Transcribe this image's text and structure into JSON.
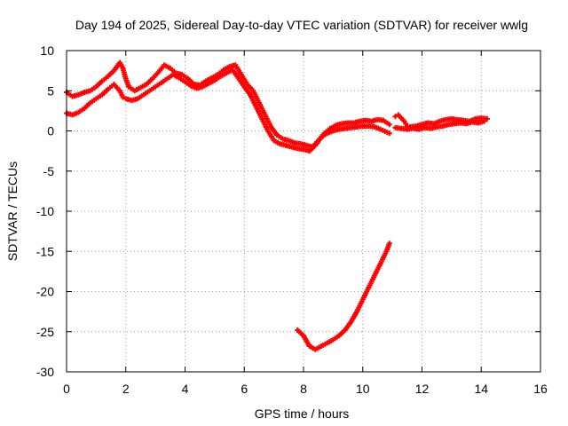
{
  "chart_data": {
    "type": "scatter",
    "title": "Day 194 of 2025, Sidereal Day-to-day VTEC variation (SDTVAR) for receiver wwlg",
    "xlabel": "GPS time / hours",
    "ylabel": "SDTVAR / TECUs",
    "xlim": [
      0,
      16
    ],
    "ylim": [
      -30,
      10
    ],
    "xticks": [
      "0",
      "2",
      "4",
      "6",
      "8",
      "10",
      "12",
      "14",
      "16"
    ],
    "yticks": [
      "10",
      "5",
      "0",
      "-5",
      "-10",
      "-15",
      "-20",
      "-25",
      "-30"
    ],
    "grid": true,
    "legend": "none",
    "marker": "plus",
    "color": "#ff0000",
    "series": [
      {
        "points": [
          [
            0.0,
            4.8
          ],
          [
            0.2,
            4.3
          ],
          [
            0.4,
            4.5
          ],
          [
            0.6,
            4.8
          ],
          [
            0.8,
            5.0
          ],
          [
            1.0,
            5.5
          ],
          [
            1.2,
            6.2
          ],
          [
            1.4,
            6.8
          ],
          [
            1.6,
            7.5
          ],
          [
            1.8,
            8.5
          ],
          [
            1.9,
            7.8
          ],
          [
            2.0,
            6.5
          ],
          [
            2.1,
            5.5
          ],
          [
            2.3,
            5.0
          ],
          [
            2.5,
            5.4
          ],
          [
            2.7,
            5.8
          ],
          [
            2.9,
            6.5
          ],
          [
            3.1,
            7.3
          ],
          [
            3.3,
            8.2
          ],
          [
            3.5,
            7.8
          ],
          [
            3.7,
            7.2
          ],
          [
            3.9,
            7.0
          ],
          [
            4.1,
            6.5
          ],
          [
            4.3,
            5.8
          ],
          [
            4.5,
            5.7
          ],
          [
            4.7,
            6.2
          ],
          [
            4.9,
            6.6
          ],
          [
            5.1,
            7.0
          ],
          [
            5.3,
            7.6
          ],
          [
            5.5,
            8.0
          ],
          [
            5.7,
            8.2
          ],
          [
            5.9,
            7.0
          ],
          [
            6.1,
            5.8
          ],
          [
            6.3,
            5.0
          ],
          [
            6.5,
            3.5
          ],
          [
            6.7,
            2.0
          ],
          [
            6.9,
            0.5
          ],
          [
            7.1,
            -0.5
          ],
          [
            7.3,
            -1.0
          ],
          [
            7.5,
            -1.2
          ],
          [
            7.7,
            -1.5
          ],
          [
            7.9,
            -1.6
          ],
          [
            8.1,
            -1.8
          ],
          [
            8.3,
            -2.0
          ],
          [
            8.5,
            -1.2
          ],
          [
            8.7,
            -0.3
          ],
          [
            8.9,
            0.3
          ],
          [
            9.1,
            0.7
          ],
          [
            9.3,
            0.9
          ],
          [
            9.5,
            1.0
          ],
          [
            9.7,
            1.0
          ],
          [
            9.9,
            1.2
          ],
          [
            10.1,
            1.3
          ],
          [
            10.3,
            1.2
          ],
          [
            10.5,
            1.4
          ],
          [
            10.7,
            1.3
          ],
          [
            10.9,
            0.8
          ]
        ]
      },
      {
        "points": [
          [
            0.0,
            2.2
          ],
          [
            0.2,
            2.0
          ],
          [
            0.4,
            2.3
          ],
          [
            0.6,
            2.8
          ],
          [
            0.8,
            3.5
          ],
          [
            1.0,
            4.0
          ],
          [
            1.2,
            4.5
          ],
          [
            1.4,
            5.2
          ],
          [
            1.6,
            5.8
          ],
          [
            1.8,
            5.0
          ],
          [
            1.9,
            4.2
          ],
          [
            2.0,
            4.0
          ],
          [
            2.2,
            3.8
          ],
          [
            2.4,
            4.0
          ],
          [
            2.6,
            4.5
          ],
          [
            2.8,
            5.0
          ],
          [
            3.0,
            5.5
          ],
          [
            3.2,
            6.0
          ],
          [
            3.4,
            6.5
          ],
          [
            3.6,
            7.0
          ],
          [
            3.8,
            6.6
          ],
          [
            4.0,
            6.1
          ],
          [
            4.2,
            5.6
          ],
          [
            4.4,
            5.3
          ],
          [
            4.6,
            5.5
          ],
          [
            4.8,
            5.9
          ],
          [
            5.0,
            6.3
          ],
          [
            5.2,
            6.8
          ],
          [
            5.4,
            7.2
          ],
          [
            5.6,
            7.6
          ],
          [
            5.8,
            6.6
          ],
          [
            6.0,
            5.5
          ],
          [
            6.2,
            4.5
          ],
          [
            6.4,
            3.0
          ],
          [
            6.6,
            1.5
          ],
          [
            6.8,
            0.0
          ],
          [
            7.0,
            -1.2
          ],
          [
            7.2,
            -1.6
          ],
          [
            7.4,
            -1.8
          ],
          [
            7.6,
            -2.0
          ],
          [
            7.8,
            -2.2
          ],
          [
            8.0,
            -2.3
          ],
          [
            8.2,
            -2.5
          ],
          [
            8.4,
            -1.8
          ],
          [
            8.6,
            -0.8
          ],
          [
            8.8,
            -0.3
          ],
          [
            9.0,
            0.0
          ],
          [
            9.2,
            0.2
          ],
          [
            9.4,
            0.3
          ],
          [
            9.6,
            0.4
          ],
          [
            9.8,
            0.5
          ],
          [
            10.0,
            0.6
          ],
          [
            10.2,
            0.6
          ],
          [
            10.4,
            0.5
          ],
          [
            10.6,
            0.2
          ],
          [
            10.9,
            -0.3
          ]
        ]
      },
      {
        "points": [
          [
            7.8,
            -24.8
          ],
          [
            8.0,
            -25.5
          ],
          [
            8.2,
            -26.8
          ],
          [
            8.4,
            -27.2
          ],
          [
            8.6,
            -26.8
          ],
          [
            8.8,
            -26.4
          ],
          [
            9.0,
            -26.0
          ],
          [
            9.2,
            -25.5
          ],
          [
            9.4,
            -24.8
          ],
          [
            9.6,
            -23.8
          ],
          [
            9.8,
            -22.5
          ],
          [
            10.0,
            -21.0
          ],
          [
            10.2,
            -19.5
          ],
          [
            10.4,
            -18.0
          ],
          [
            10.6,
            -16.5
          ],
          [
            10.8,
            -15.0
          ],
          [
            10.9,
            -14.0
          ]
        ]
      },
      {
        "points": [
          [
            11.1,
            1.8
          ],
          [
            11.2,
            2.0
          ],
          [
            11.3,
            1.6
          ],
          [
            11.4,
            1.2
          ],
          [
            11.5,
            0.6
          ],
          [
            11.6,
            0.5
          ],
          [
            11.8,
            0.6
          ],
          [
            12.0,
            0.8
          ],
          [
            12.2,
            1.0
          ],
          [
            12.4,
            0.9
          ],
          [
            12.6,
            1.2
          ],
          [
            12.8,
            1.4
          ],
          [
            13.0,
            1.5
          ],
          [
            13.2,
            1.4
          ],
          [
            13.4,
            1.3
          ],
          [
            13.6,
            1.2
          ],
          [
            13.8,
            1.5
          ],
          [
            14.0,
            1.6
          ],
          [
            14.2,
            1.5
          ],
          [
            11.1,
            0.4
          ],
          [
            11.3,
            0.3
          ],
          [
            11.5,
            0.2
          ],
          [
            11.7,
            0.3
          ],
          [
            11.9,
            0.2
          ],
          [
            12.1,
            0.4
          ],
          [
            12.3,
            0.3
          ],
          [
            12.5,
            0.5
          ],
          [
            12.7,
            0.6
          ],
          [
            12.9,
            0.8
          ],
          [
            13.1,
            0.9
          ],
          [
            13.3,
            1.0
          ],
          [
            13.5,
            0.9
          ],
          [
            13.7,
            1.1
          ],
          [
            13.9,
            1.0
          ],
          [
            14.1,
            1.2
          ]
        ]
      }
    ]
  }
}
